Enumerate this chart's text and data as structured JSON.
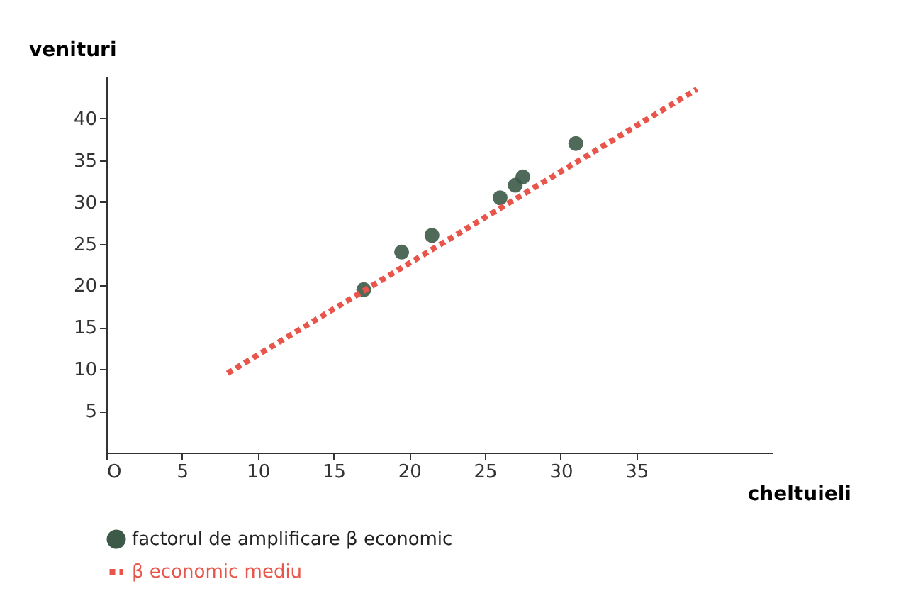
{
  "chart_data": {
    "type": "scatter",
    "xlabel": "cheltuieli",
    "ylabel": "venituri",
    "xlim": [
      0,
      44
    ],
    "ylim": [
      0,
      45
    ],
    "xticks": [
      {
        "value": 0,
        "label": "O"
      },
      5,
      10,
      15,
      20,
      25,
      30,
      35
    ],
    "yticks": [
      5,
      10,
      15,
      20,
      25,
      30,
      35,
      40
    ],
    "x": [
      17,
      19.5,
      21.5,
      26,
      27,
      27.5,
      31
    ],
    "legend": "bottom",
    "series": [
      {
        "name": "factorul de amplificare β economic",
        "color": "#3d5a48",
        "values": [
          19.5,
          24,
          26,
          30.5,
          32,
          33,
          37
        ]
      },
      {
        "name": "β economic mediu",
        "type": "line",
        "color": "#e8554a",
        "line_style": "dotted",
        "x": [
          8,
          39
        ],
        "values": [
          9.5,
          43.5
        ]
      }
    ]
  }
}
